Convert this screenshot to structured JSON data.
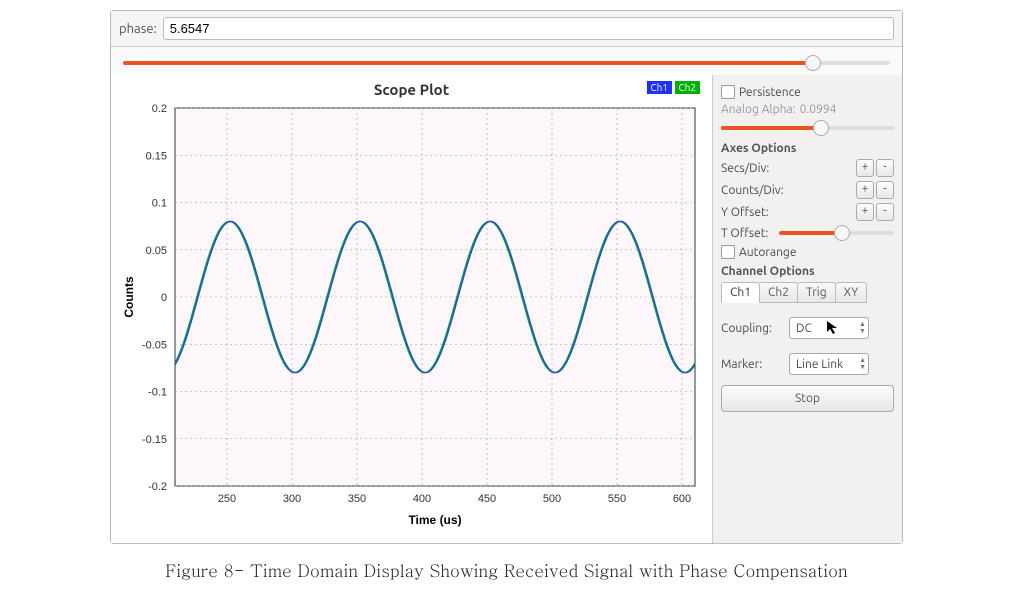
{
  "figure_caption": "Figure 8- Time Domain Display Showing Received Signal with Phase Compensation",
  "topbar": {
    "label": "phase:",
    "value": "5.6547",
    "slider_fill_pct": 90
  },
  "plot": {
    "title": "Scope Plot",
    "legend": {
      "ch1": "Ch1",
      "ch2": "Ch2"
    },
    "background_color": "#fdf7fb",
    "grid_color": "#999999",
    "axis_color": "#333333",
    "x": {
      "label": "Time (us)",
      "min": 210,
      "max": 610,
      "ticks": [
        250,
        300,
        350,
        400,
        450,
        500,
        550,
        600
      ],
      "label_fontsize": 12,
      "tick_fontsize": 11
    },
    "y": {
      "label": "Counts",
      "min": -0.2,
      "max": 0.2,
      "ticks": [
        -0.2,
        -0.15,
        -0.1,
        -0.05,
        0,
        0.05,
        0.1,
        0.15,
        0.2
      ],
      "label_fontsize": 12,
      "tick_fontsize": 11
    },
    "sine": {
      "amplitude": 0.08,
      "period_us": 100,
      "phase_at_x0_deg": -100,
      "line_width": 1.4,
      "color_ch1": "#2a4ad0",
      "color_ch2": "#00a040"
    }
  },
  "sidebar": {
    "persistence": {
      "label": "Persistence",
      "checked": false
    },
    "analog_alpha": {
      "label": "Analog Alpha:",
      "value": "0.0994",
      "slider_fill_pct": 58
    },
    "axes_heading": "Axes Options",
    "secs_div": "Secs/Div:",
    "counts_div": "Counts/Div:",
    "y_offset": "Y Offset:",
    "t_offset": {
      "label": "T Offset:",
      "slider_fill_pct": 55
    },
    "autorange": {
      "label": "Autorange",
      "checked": false
    },
    "channel_heading": "Channel Options",
    "tabs": {
      "ch1": "Ch1",
      "ch2": "Ch2",
      "trig": "Trig",
      "xy": "XY",
      "active": "ch1"
    },
    "coupling": {
      "label": "Coupling:",
      "value": "DC"
    },
    "marker": {
      "label": "Marker:",
      "value": "Line Link"
    },
    "stop": "Stop"
  },
  "colors": {
    "accent": "#e95420",
    "chip_ch1": "#2030ff",
    "chip_ch2": "#00b000"
  }
}
